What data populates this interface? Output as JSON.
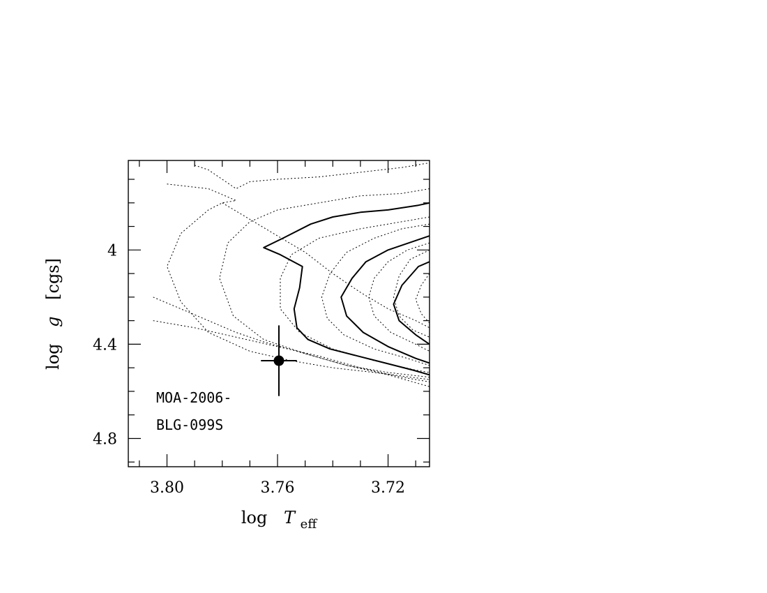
{
  "chart_data": {
    "type": "line",
    "xlabel_main": "log",
    "xlabel_var": "T",
    "xlabel_sub": "eff",
    "ylabel_main": "log",
    "ylabel_var": "g",
    "ylabel_unit": "[cgs]",
    "xlim": [
      3.814,
      3.705
    ],
    "ylim": [
      3.62,
      4.92
    ],
    "x_ticks": [
      3.8,
      3.76,
      3.72
    ],
    "x_tick_labels": [
      "3.80",
      "3.76",
      "3.72"
    ],
    "y_ticks": [
      4.0,
      4.4,
      4.8
    ],
    "y_tick_labels": [
      "4",
      "4.4",
      "4.8"
    ],
    "grid": false,
    "annotation_lines": [
      "MOA-2006-",
      "BLG-099S"
    ],
    "point": {
      "x": 3.7595,
      "y": 4.47,
      "x_err": 0.0065,
      "y_err_low": 0.15,
      "y_err_high": 0.15
    },
    "series": [
      {
        "style": "solid",
        "points": [
          [
            3.705,
            3.8
          ],
          [
            3.709,
            3.81
          ],
          [
            3.72,
            3.83
          ],
          [
            3.73,
            3.84
          ],
          [
            3.74,
            3.86
          ],
          [
            3.748,
            3.89
          ],
          [
            3.758,
            3.95
          ],
          [
            3.765,
            3.99
          ],
          [
            3.759,
            4.02
          ],
          [
            3.751,
            4.07
          ],
          [
            3.752,
            4.16
          ],
          [
            3.754,
            4.25
          ],
          [
            3.753,
            4.33
          ],
          [
            3.749,
            4.38
          ],
          [
            3.741,
            4.42
          ],
          [
            3.731,
            4.45
          ],
          [
            3.721,
            4.48
          ],
          [
            3.711,
            4.51
          ],
          [
            3.705,
            4.53
          ]
        ]
      },
      {
        "style": "solid",
        "points": [
          [
            3.705,
            3.94
          ],
          [
            3.71,
            3.96
          ],
          [
            3.72,
            4.0
          ],
          [
            3.728,
            4.05
          ],
          [
            3.733,
            4.12
          ],
          [
            3.737,
            4.2
          ],
          [
            3.735,
            4.28
          ],
          [
            3.729,
            4.35
          ],
          [
            3.72,
            4.41
          ],
          [
            3.71,
            4.46
          ],
          [
            3.705,
            4.48
          ]
        ]
      },
      {
        "style": "solid",
        "points": [
          [
            3.705,
            4.05
          ],
          [
            3.709,
            4.07
          ],
          [
            3.715,
            4.15
          ],
          [
            3.718,
            4.23
          ],
          [
            3.716,
            4.3
          ],
          [
            3.71,
            4.36
          ],
          [
            3.705,
            4.4
          ]
        ]
      },
      {
        "style": "dotted",
        "points": [
          [
            3.805,
            4.2
          ],
          [
            3.795,
            4.25
          ],
          [
            3.785,
            4.3
          ],
          [
            3.775,
            4.35
          ],
          [
            3.765,
            4.39
          ],
          [
            3.75,
            4.44
          ],
          [
            3.735,
            4.49
          ],
          [
            3.72,
            4.53
          ],
          [
            3.705,
            4.58
          ]
        ]
      },
      {
        "style": "dotted",
        "points": [
          [
            3.805,
            4.3
          ],
          [
            3.79,
            4.33
          ],
          [
            3.775,
            4.37
          ],
          [
            3.76,
            4.41
          ],
          [
            3.745,
            4.45
          ],
          [
            3.73,
            4.5
          ],
          [
            3.715,
            4.54
          ],
          [
            3.705,
            4.56
          ]
        ]
      },
      {
        "style": "dotted",
        "points": [
          [
            3.78,
            3.8
          ],
          [
            3.77,
            3.87
          ],
          [
            3.76,
            3.94
          ],
          [
            3.75,
            4.01
          ],
          [
            3.74,
            4.1
          ],
          [
            3.73,
            4.18
          ],
          [
            3.72,
            4.25
          ],
          [
            3.71,
            4.3
          ],
          [
            3.705,
            4.33
          ]
        ]
      },
      {
        "style": "dotted",
        "points": [
          [
            3.8,
            3.72
          ],
          [
            3.785,
            3.74
          ],
          [
            3.775,
            3.79
          ],
          [
            3.78,
            3.8
          ],
          [
            3.785,
            3.83
          ],
          [
            3.795,
            3.93
          ],
          [
            3.8,
            4.07
          ],
          [
            3.795,
            4.22
          ],
          [
            3.785,
            4.35
          ],
          [
            3.77,
            4.43
          ],
          [
            3.755,
            4.47
          ],
          [
            3.74,
            4.5
          ],
          [
            3.725,
            4.52
          ],
          [
            3.705,
            4.55
          ]
        ]
      },
      {
        "style": "dotted",
        "points": [
          [
            3.79,
            3.64
          ],
          [
            3.785,
            3.66
          ],
          [
            3.775,
            3.74
          ],
          [
            3.77,
            3.71
          ],
          [
            3.76,
            3.7
          ],
          [
            3.745,
            3.69
          ],
          [
            3.73,
            3.67
          ],
          [
            3.715,
            3.65
          ],
          [
            3.705,
            3.63
          ]
        ]
      },
      {
        "style": "dotted",
        "points": [
          [
            3.705,
            3.74
          ],
          [
            3.715,
            3.76
          ],
          [
            3.73,
            3.77
          ],
          [
            3.745,
            3.8
          ],
          [
            3.76,
            3.83
          ],
          [
            3.77,
            3.88
          ],
          [
            3.778,
            3.97
          ],
          [
            3.781,
            4.12
          ],
          [
            3.776,
            4.28
          ],
          [
            3.765,
            4.38
          ],
          [
            3.75,
            4.44
          ],
          [
            3.735,
            4.49
          ],
          [
            3.72,
            4.52
          ],
          [
            3.705,
            4.54
          ]
        ]
      },
      {
        "style": "dotted",
        "points": [
          [
            3.705,
            3.86
          ],
          [
            3.715,
            3.88
          ],
          [
            3.73,
            3.91
          ],
          [
            3.745,
            3.95
          ],
          [
            3.755,
            4.02
          ],
          [
            3.759,
            4.12
          ],
          [
            3.759,
            4.25
          ],
          [
            3.752,
            4.35
          ],
          [
            3.74,
            4.42
          ],
          [
            3.725,
            4.47
          ],
          [
            3.71,
            4.51
          ],
          [
            3.705,
            4.52
          ]
        ]
      },
      {
        "style": "dotted",
        "points": [
          [
            3.705,
            3.89
          ],
          [
            3.715,
            3.91
          ],
          [
            3.725,
            3.95
          ],
          [
            3.735,
            4.01
          ],
          [
            3.741,
            4.1
          ],
          [
            3.744,
            4.2
          ],
          [
            3.742,
            4.29
          ],
          [
            3.736,
            4.36
          ],
          [
            3.725,
            4.42
          ],
          [
            3.713,
            4.46
          ],
          [
            3.705,
            4.49
          ]
        ]
      },
      {
        "style": "dotted",
        "points": [
          [
            3.705,
            3.97
          ],
          [
            3.713,
            4.0
          ],
          [
            3.72,
            4.05
          ],
          [
            3.725,
            4.12
          ],
          [
            3.727,
            4.2
          ],
          [
            3.725,
            4.28
          ],
          [
            3.719,
            4.35
          ],
          [
            3.71,
            4.4
          ],
          [
            3.705,
            4.43
          ]
        ]
      },
      {
        "style": "dotted",
        "points": [
          [
            3.705,
            4.0
          ],
          [
            3.712,
            4.04
          ],
          [
            3.716,
            4.11
          ],
          [
            3.718,
            4.2
          ],
          [
            3.716,
            4.28
          ],
          [
            3.711,
            4.34
          ],
          [
            3.705,
            4.37
          ]
        ]
      },
      {
        "style": "dotted",
        "points": [
          [
            3.705,
            4.1
          ],
          [
            3.708,
            4.15
          ],
          [
            3.71,
            4.21
          ],
          [
            3.708,
            4.27
          ],
          [
            3.705,
            4.31
          ]
        ]
      }
    ]
  }
}
